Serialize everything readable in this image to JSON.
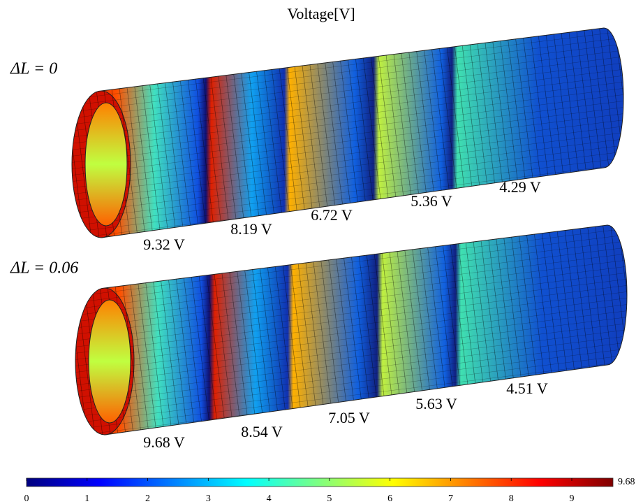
{
  "title": "Voltage[V]",
  "panels": [
    {
      "label": "ΔL = 0",
      "voltages": [
        "9.32 V",
        "8.19 V",
        "6.72 V",
        "5.36 V",
        "4.29 V"
      ]
    },
    {
      "label": "ΔL = 0.06",
      "voltages": [
        "9.68 V",
        "8.54 V",
        "7.05 V",
        "5.63 V",
        "4.51 V"
      ]
    }
  ],
  "colorbar": {
    "lim": [
      0,
      9.68
    ],
    "ticks": [
      0,
      1,
      2,
      3,
      4,
      5,
      6,
      7,
      8,
      9
    ]
  }
}
